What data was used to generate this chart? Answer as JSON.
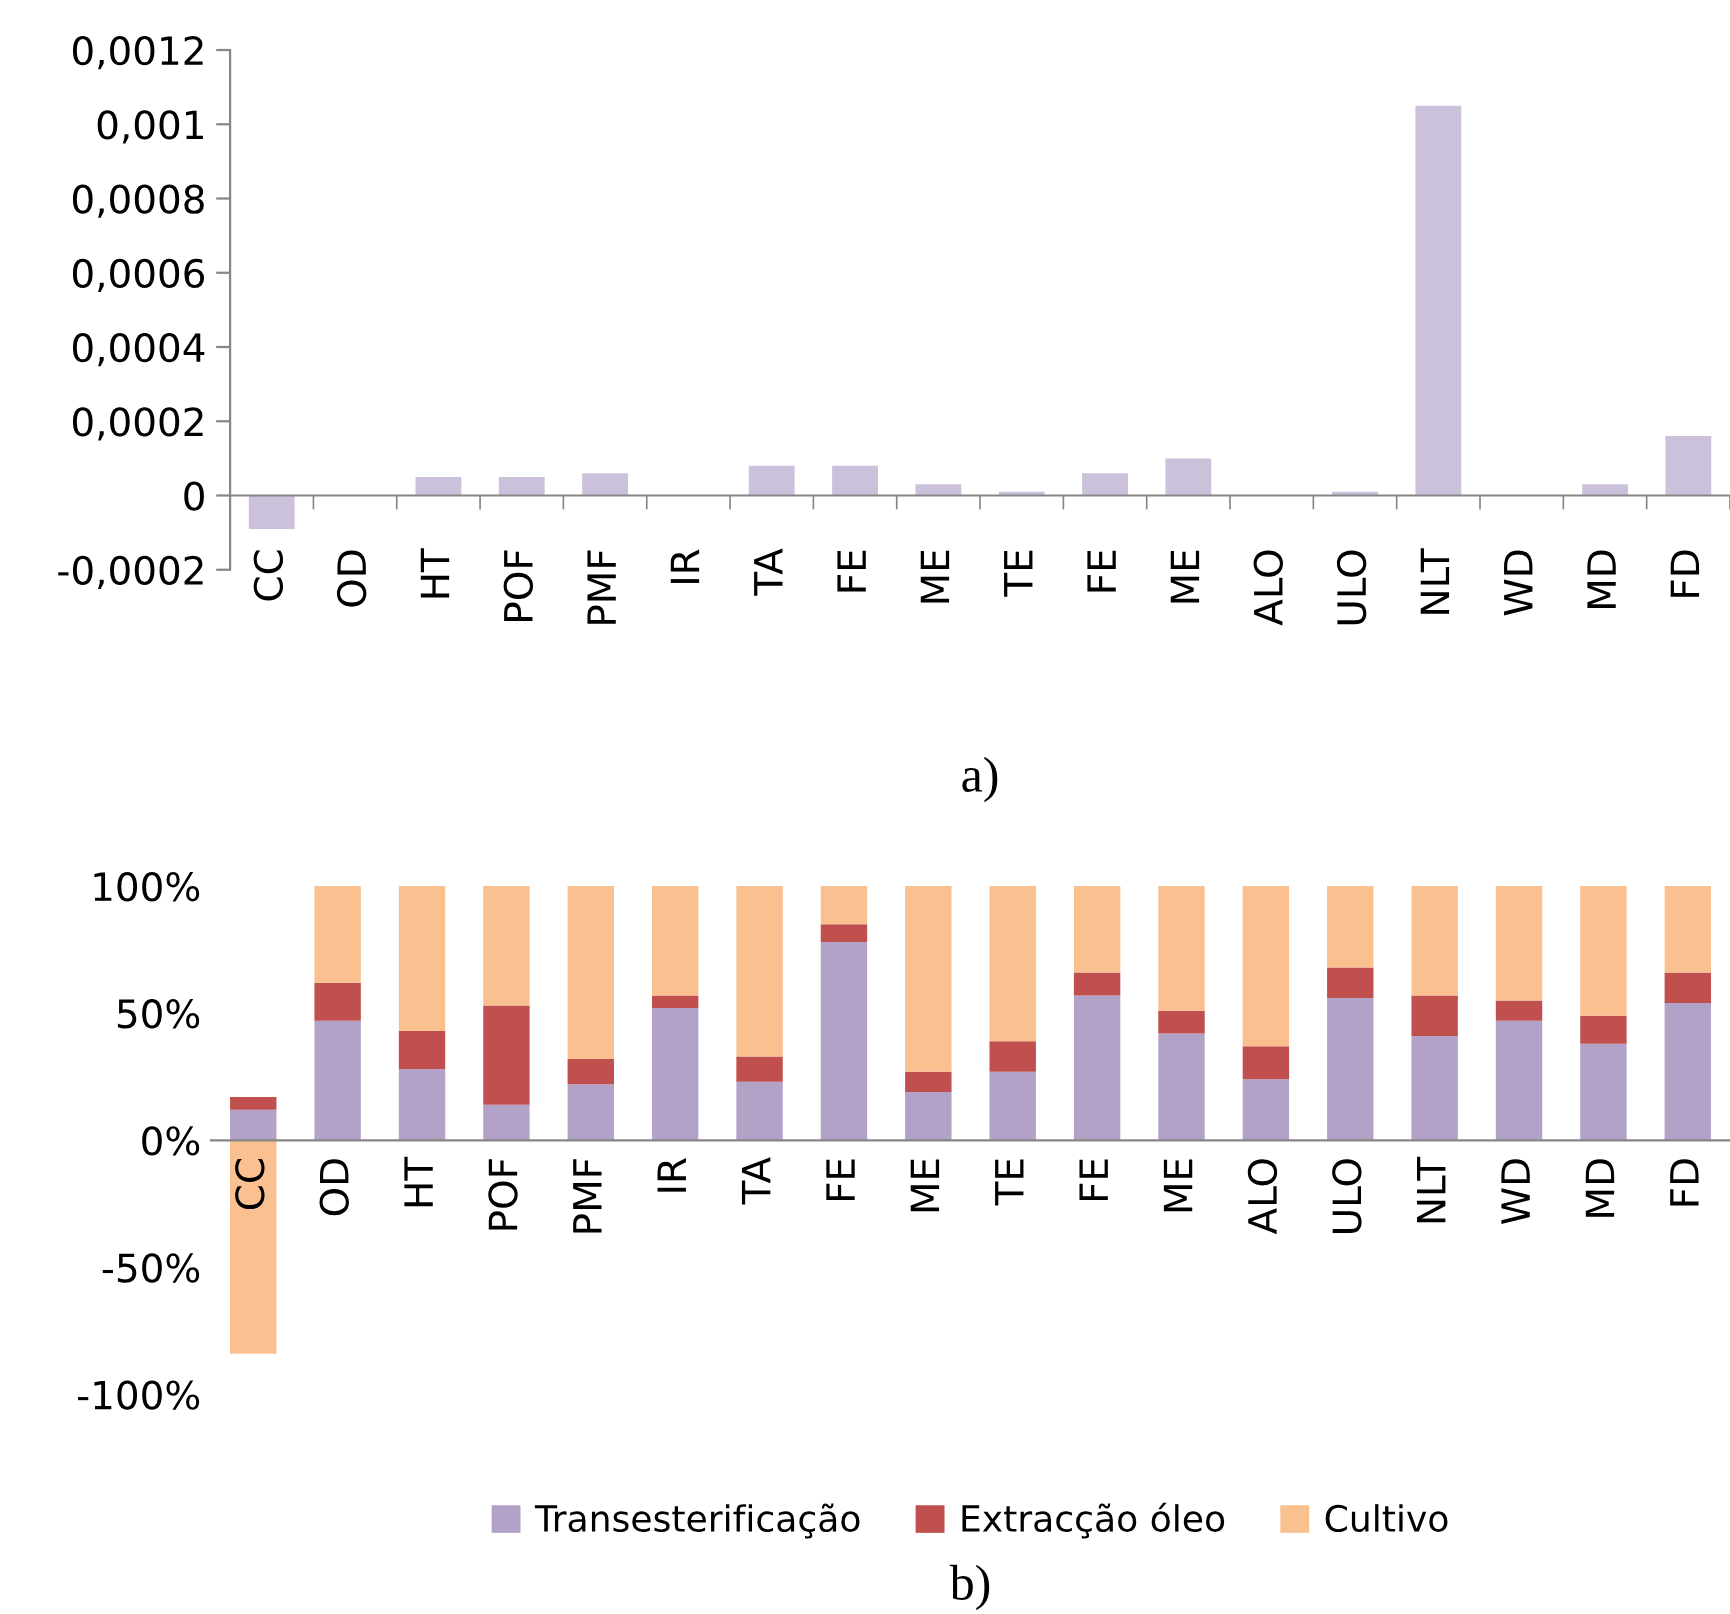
{
  "chart_data": [
    {
      "type": "bar",
      "categories": [
        "CC",
        "OD",
        "HT",
        "POF",
        "PMF",
        "IR",
        "TA",
        "FE",
        "ME",
        "TE",
        "FE",
        "ME",
        "ALO",
        "ULO",
        "NLT",
        "WD",
        "MD",
        "FD"
      ],
      "series": [
        {
          "color": "#ccc1da",
          "values": [
            -9e-05,
            0,
            5e-05,
            5e-05,
            6e-05,
            0,
            8e-05,
            8e-05,
            3e-05,
            1e-05,
            6e-05,
            0.0001,
            0,
            1e-05,
            0.00105,
            0,
            3e-05,
            0.00016
          ]
        }
      ],
      "ylim": [
        -0.0002,
        0.0012
      ],
      "yticks": [
        {
          "value": -0.0002,
          "label": "-0,0002"
        },
        0,
        {
          "value": 0.0002,
          "label": "0,0002"
        },
        {
          "value": 0.0004,
          "label": "0,0004"
        },
        {
          "value": 0.0006,
          "label": "0,0006"
        },
        {
          "value": 0.0008,
          "label": "0,0008"
        },
        {
          "value": 0.001,
          "label": "0,001"
        },
        {
          "value": 0.0012,
          "label": "0,0012"
        }
      ],
      "annotations": [
        "a)"
      ],
      "grid": false,
      "legend": false
    },
    {
      "type": "bar",
      "stacked": true,
      "categories": [
        "CC",
        "OD",
        "HT",
        "POF",
        "PMF",
        "IR",
        "TA",
        "FE",
        "ME",
        "TE",
        "FE",
        "ME",
        "ALO",
        "ULO",
        "NLT",
        "WD",
        "MD",
        "FD"
      ],
      "series": [
        {
          "name": "Transesterificação",
          "color": "#b3a2c7",
          "values": [
            12,
            47,
            28,
            14,
            22,
            52,
            23,
            78,
            19,
            27,
            57,
            42,
            24,
            56,
            41,
            47,
            38,
            54
          ]
        },
        {
          "name": "Extracção óleo",
          "color": "#c0504d",
          "values": [
            5,
            15,
            15,
            39,
            10,
            5,
            10,
            7,
            8,
            12,
            9,
            9,
            13,
            12,
            16,
            8,
            11,
            12
          ]
        },
        {
          "name": "Cultivo",
          "color": "#fac090",
          "values": [
            -84,
            38,
            57,
            47,
            68,
            43,
            67,
            15,
            73,
            61,
            34,
            49,
            63,
            32,
            43,
            45,
            51,
            34
          ]
        }
      ],
      "ylim": [
        -100,
        100
      ],
      "yticks": [
        {
          "value": -100,
          "label": "-100%"
        },
        {
          "value": -50,
          "label": "-50%"
        },
        {
          "value": 0,
          "label": "0%"
        },
        {
          "value": 50,
          "label": "50%"
        },
        {
          "value": 100,
          "label": "100%"
        }
      ],
      "annotations": [
        "b)"
      ],
      "grid": false,
      "legend": "bottom"
    }
  ]
}
